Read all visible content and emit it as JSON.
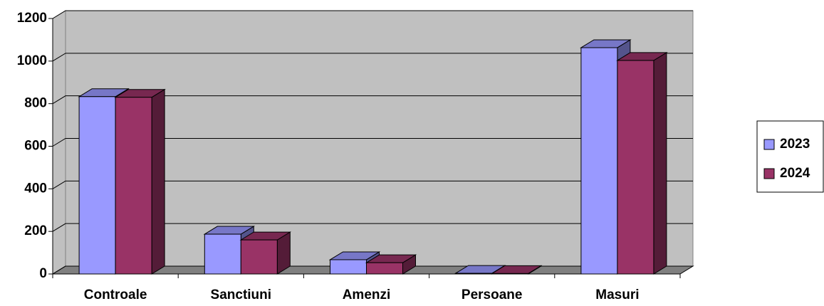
{
  "chart_data": {
    "type": "bar3d",
    "categories": [
      "Controale",
      "Sanctiuni",
      "Amenzi",
      "Persoane",
      "Masuri"
    ],
    "series": [
      {
        "name": "2023",
        "color": "#9999ff",
        "values": [
          833,
          187,
          67,
          3,
          1063
        ]
      },
      {
        "name": "2024",
        "color": "#993366",
        "values": [
          830,
          160,
          53,
          2,
          1003
        ]
      }
    ],
    "ylim": [
      0,
      1200
    ],
    "yticks": [
      0,
      200,
      400,
      600,
      800,
      1000,
      1200
    ],
    "grid": true,
    "legend": "right"
  }
}
